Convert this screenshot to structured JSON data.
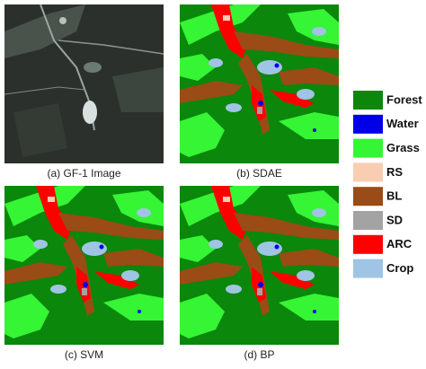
{
  "panels": [
    {
      "caption": "(a) GF-1 Image"
    },
    {
      "caption": "(b) SDAE"
    },
    {
      "caption": "(c) SVM"
    },
    {
      "caption": "(d) BP"
    }
  ],
  "legend": [
    {
      "label": "Forest",
      "color": "#0b870b"
    },
    {
      "label": "Water",
      "color": "#0000e6"
    },
    {
      "label": "Grass",
      "color": "#35f535"
    },
    {
      "label": "RS",
      "color": "#f8cdb2"
    },
    {
      "label": "BL",
      "color": "#9a4b16"
    },
    {
      "label": "SD",
      "color": "#a3a3a3"
    },
    {
      "label": "ARC",
      "color": "#ff0000"
    },
    {
      "label": "Crop",
      "color": "#a0c4e4"
    }
  ]
}
